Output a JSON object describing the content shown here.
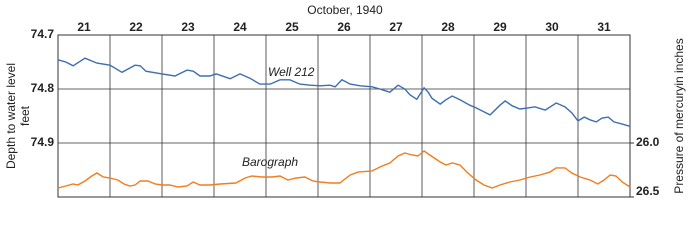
{
  "chart_data": {
    "type": "line",
    "title": "October, 1940",
    "y_label_lines": [
      "Depth to water level",
      "feet"
    ],
    "y2_label": "Pressure of mercuryin inches",
    "annotations": [
      "Well 212",
      "Barograph"
    ],
    "xlim": [
      21,
      32
    ],
    "xticks": [
      21,
      22,
      23,
      24,
      25,
      26,
      27,
      28,
      29,
      30,
      31
    ],
    "ylim": [
      74.7,
      75.0
    ],
    "y_inverted": true,
    "yticks": [
      74.7,
      74.8,
      74.9
    ],
    "y2lim": [
      25.0,
      26.5
    ],
    "y2_inverted": true,
    "y2ticks": [
      {
        "value": 26,
        "label": "26.0"
      },
      {
        "value": 26.5,
        "label": "26.5"
      }
    ],
    "grid": true,
    "series": [
      {
        "name": "Well 212",
        "color": "#3d6fb0",
        "x": [
          21.0,
          21.15,
          21.29,
          21.52,
          21.75,
          22.0,
          22.23,
          22.48,
          22.58,
          22.69,
          23.0,
          23.25,
          23.48,
          23.6,
          23.73,
          23.92,
          24.04,
          24.31,
          24.5,
          24.69,
          24.88,
          25.08,
          25.27,
          25.46,
          25.65,
          25.85,
          26.04,
          26.23,
          26.33,
          26.46,
          26.62,
          26.81,
          27.04,
          27.19,
          27.38,
          27.54,
          27.67,
          27.77,
          27.9,
          28.04,
          28.12,
          28.19,
          28.35,
          28.46,
          28.58,
          28.73,
          28.92,
          29.04,
          29.31,
          29.5,
          29.6,
          29.73,
          29.88,
          30.04,
          30.17,
          30.37,
          30.58,
          30.75,
          30.88,
          31.0,
          31.12,
          31.23,
          31.35,
          31.46,
          31.58,
          31.69,
          31.85,
          32.0
        ],
        "values": [
          74.746,
          74.75,
          74.757,
          74.743,
          74.752,
          74.756,
          74.769,
          74.756,
          74.757,
          74.767,
          74.772,
          74.776,
          74.765,
          74.767,
          74.776,
          74.776,
          74.772,
          74.781,
          74.772,
          74.78,
          74.791,
          74.791,
          74.783,
          74.783,
          74.791,
          74.793,
          74.794,
          74.793,
          74.796,
          74.783,
          74.791,
          74.794,
          74.796,
          74.8,
          74.806,
          74.793,
          74.8,
          74.811,
          74.819,
          74.798,
          74.806,
          74.817,
          74.828,
          74.82,
          74.813,
          74.82,
          74.83,
          74.835,
          74.848,
          74.83,
          74.822,
          74.831,
          74.837,
          74.835,
          74.833,
          74.839,
          74.826,
          74.833,
          74.844,
          74.859,
          74.852,
          74.857,
          74.861,
          74.854,
          74.852,
          74.861,
          74.865,
          74.869
        ]
      },
      {
        "name": "Barograph",
        "color": "#f07d1e",
        "axis": "y2",
        "x": [
          21.0,
          21.15,
          21.29,
          21.38,
          21.52,
          21.65,
          21.75,
          21.87,
          22.0,
          22.15,
          22.27,
          22.38,
          22.48,
          22.58,
          22.73,
          22.87,
          23.0,
          23.15,
          23.31,
          23.48,
          23.6,
          23.73,
          23.92,
          24.12,
          24.42,
          24.6,
          24.73,
          24.92,
          25.12,
          25.27,
          25.42,
          25.58,
          25.75,
          25.9,
          26.04,
          26.23,
          26.42,
          26.62,
          26.77,
          27.04,
          27.19,
          27.38,
          27.54,
          27.67,
          27.81,
          27.92,
          28.04,
          28.15,
          28.35,
          28.46,
          28.58,
          28.73,
          28.88,
          29.04,
          29.19,
          29.35,
          29.5,
          29.69,
          29.88,
          30.08,
          30.27,
          30.46,
          30.58,
          30.75,
          30.88,
          31.04,
          31.23,
          31.38,
          31.5,
          31.62,
          31.73,
          31.85,
          32.0
        ],
        "values": [
          26.417,
          26.398,
          26.38,
          26.389,
          26.352,
          26.306,
          26.278,
          26.315,
          26.324,
          26.343,
          26.38,
          26.398,
          26.389,
          26.352,
          26.352,
          26.38,
          26.389,
          26.389,
          26.407,
          26.398,
          26.361,
          26.389,
          26.389,
          26.38,
          26.37,
          26.324,
          26.306,
          26.315,
          26.315,
          26.306,
          26.343,
          26.324,
          26.315,
          26.352,
          26.361,
          26.37,
          26.37,
          26.296,
          26.269,
          26.259,
          26.222,
          26.185,
          26.12,
          26.093,
          26.111,
          26.12,
          26.074,
          26.111,
          26.176,
          26.204,
          26.185,
          26.204,
          26.278,
          26.343,
          26.389,
          26.417,
          26.389,
          26.361,
          26.343,
          26.315,
          26.296,
          26.269,
          26.231,
          26.231,
          26.278,
          26.315,
          26.343,
          26.38,
          26.343,
          26.296,
          26.306,
          26.361,
          26.407
        ]
      }
    ]
  }
}
